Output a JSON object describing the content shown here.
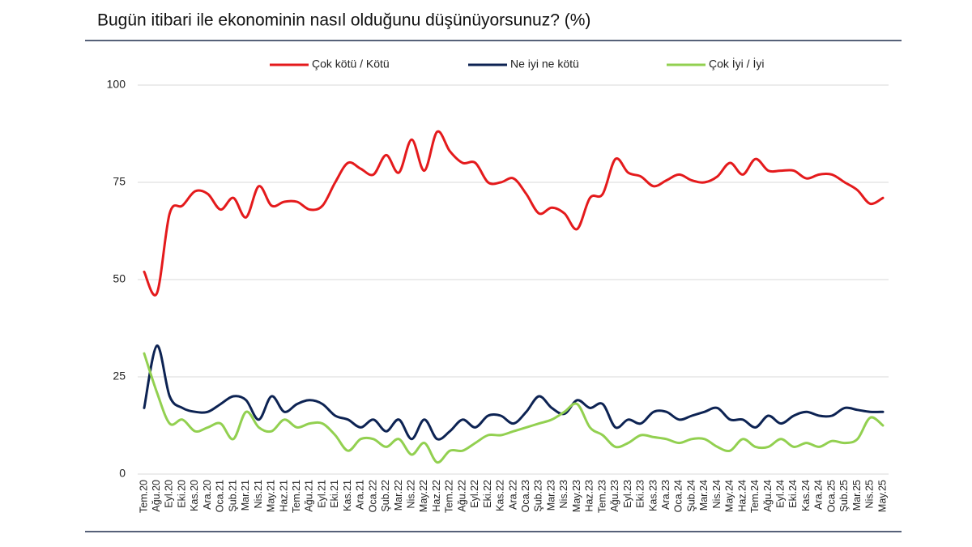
{
  "chart_data": {
    "type": "line",
    "title": "Bugün itibari ile ekonominin nasıl olduğunu düşünüyorsunuz? (%)",
    "categories": [
      "Tem.20",
      "Ağu.20",
      "Eyl.20",
      "Eki.20",
      "Kas.20",
      "Ara.20",
      "Oca.21",
      "Şub.21",
      "Mar.21",
      "Nis.21",
      "May.21",
      "Haz.21",
      "Tem.21",
      "Ağu.21",
      "Eyl.21",
      "Eki.21",
      "Kas.21",
      "Ara.21",
      "Oca.22",
      "Şub.22",
      "Mar.22",
      "Nis.22",
      "May.22",
      "Haz.22",
      "Tem.22",
      "Ağu.22",
      "Eyl.22",
      "Eki.22",
      "Kas.22",
      "Ara.22",
      "Oca.23",
      "Şub.23",
      "Mar.23",
      "Nis.23",
      "May.23",
      "Haz.23",
      "Tem.23",
      "Ağu.23",
      "Eyl.23",
      "Eki.23",
      "Kas.23",
      "Ara.23",
      "Oca.24",
      "Şub.24",
      "Mar.24",
      "Nis.24",
      "May.24",
      "Haz.24",
      "Tem.24",
      "Ağu.24",
      "Eyl.24",
      "Eki.24",
      "Kas.24",
      "Ara.24",
      "Oca.25",
      "Şub.25",
      "Mar.25",
      "Nis.25",
      "May.25"
    ],
    "series": [
      {
        "name": "Çok kötü / Kötü",
        "color": "#e41a1c",
        "values": [
          52,
          46.5,
          67,
          69,
          72.7,
          72,
          68,
          71,
          66,
          74,
          69,
          70,
          70,
          68,
          69,
          75,
          80,
          78.5,
          77,
          82,
          77.5,
          86,
          78,
          88,
          83,
          80,
          80,
          75,
          75,
          76,
          72,
          67,
          68.5,
          67,
          63,
          71,
          72,
          81,
          77.5,
          76.5,
          74,
          75.5,
          77,
          75.5,
          75,
          76.5,
          80,
          77,
          81,
          78,
          78,
          78,
          76,
          77,
          77,
          75,
          73,
          69.5,
          71
        ]
      },
      {
        "name": "Ne iyi ne kötü",
        "color": "#0d2353",
        "values": [
          17,
          33,
          20,
          17,
          16,
          16,
          18,
          20,
          19,
          14,
          20,
          16,
          18,
          19,
          18,
          15,
          14,
          12,
          14,
          11,
          14,
          9,
          14,
          9,
          11,
          14,
          12,
          15,
          15,
          13,
          16,
          20,
          17,
          15.5,
          19,
          17,
          18,
          12,
          14,
          13,
          16,
          16,
          14,
          15,
          16,
          17,
          14,
          14,
          12,
          15,
          13,
          15,
          16,
          15,
          15,
          17,
          16.5,
          16,
          16
        ]
      },
      {
        "name": "Çok İyi / İyi",
        "color": "#92d050",
        "values": [
          31,
          21,
          13,
          14,
          11,
          12,
          13,
          9,
          16,
          12,
          11,
          14,
          12,
          13,
          13,
          10,
          6,
          9,
          9,
          7,
          9,
          5,
          8,
          3,
          6,
          6,
          8,
          10,
          10,
          11,
          12,
          13,
          14,
          16,
          18,
          12,
          10,
          7,
          8,
          10,
          9.5,
          9,
          8,
          9,
          9,
          7,
          6,
          9,
          7,
          7,
          9,
          7,
          8,
          7,
          8.5,
          8,
          9,
          14.5,
          12.5
        ]
      }
    ],
    "ylim": [
      0,
      100
    ],
    "yticks": [
      0,
      25,
      50,
      75,
      100
    ],
    "grid": true,
    "legend": "top"
  }
}
